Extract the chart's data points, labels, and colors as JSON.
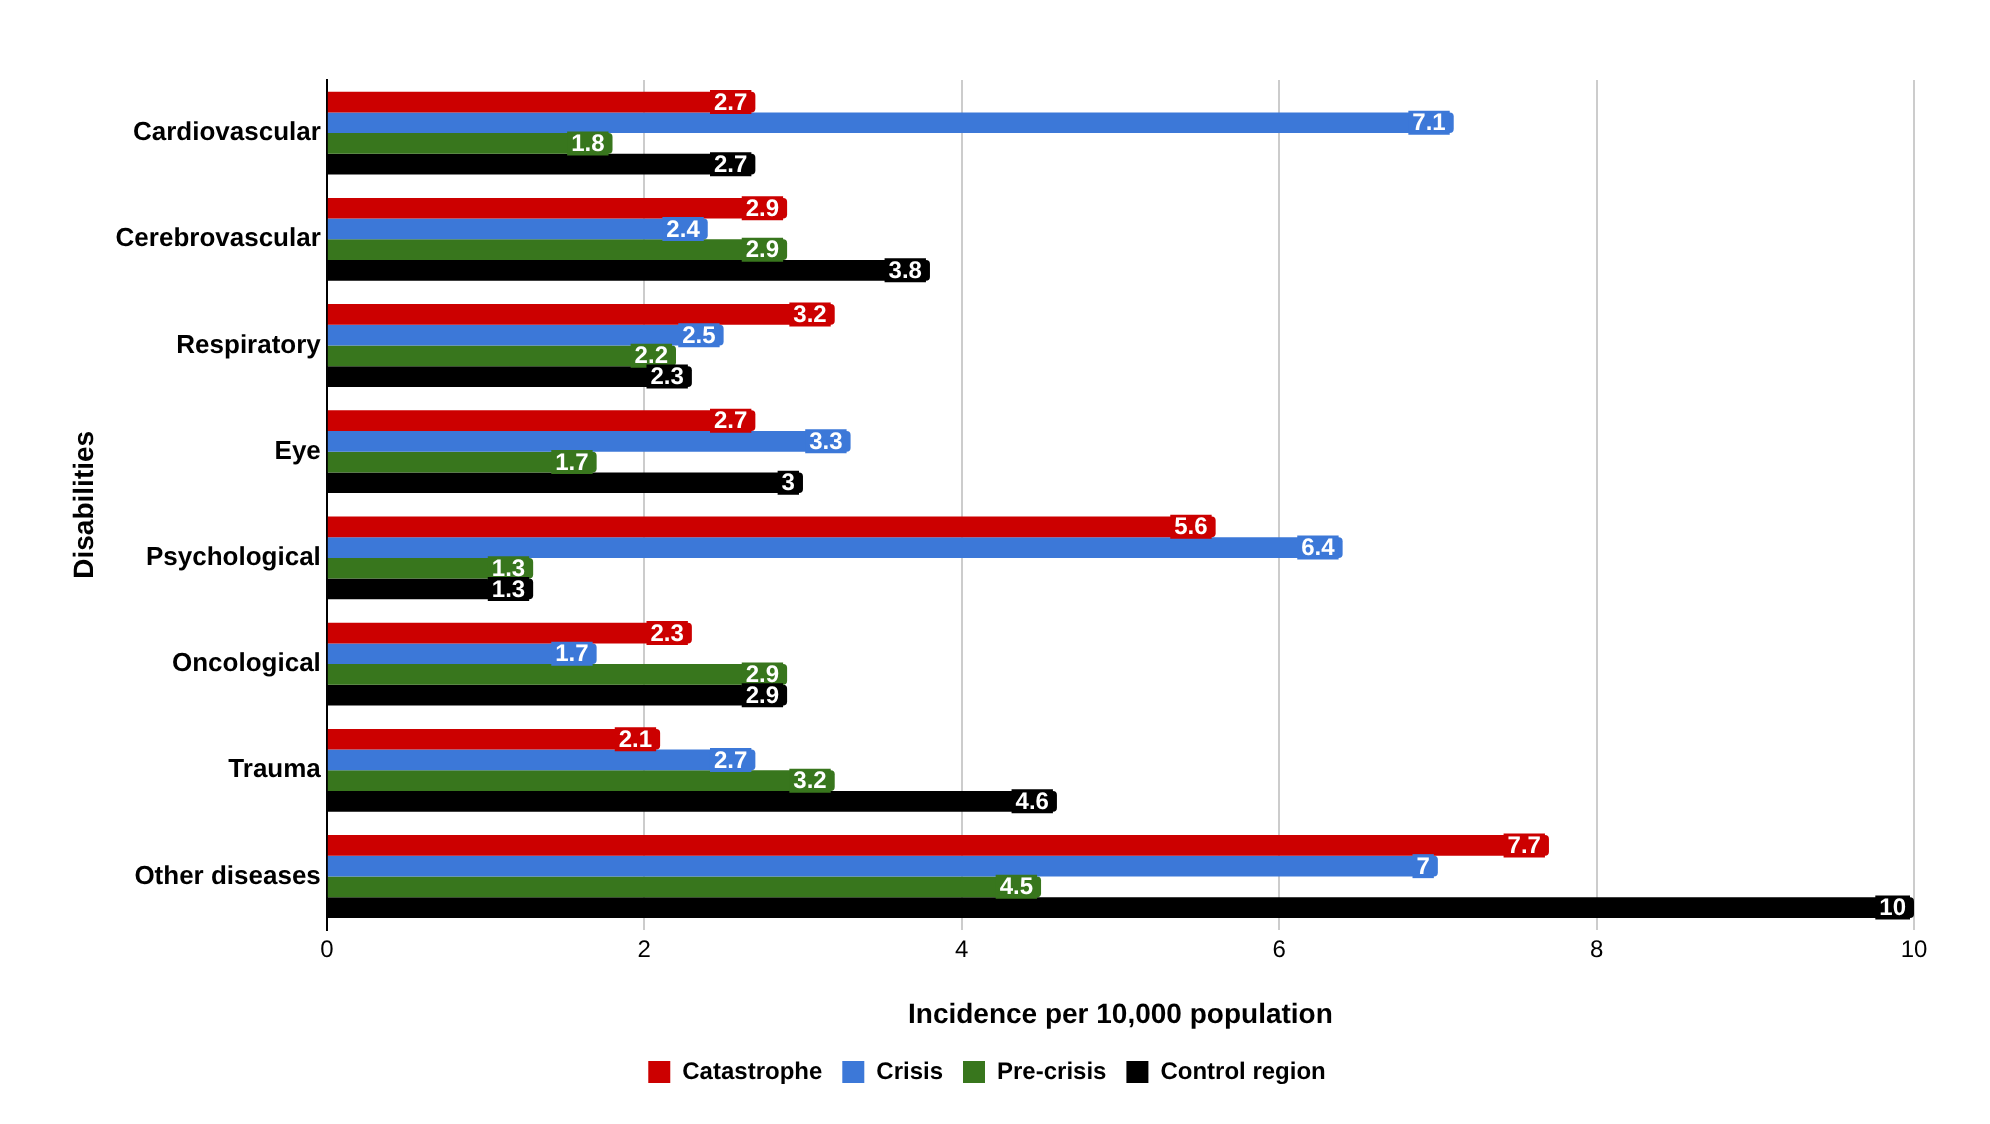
{
  "chart_data": {
    "type": "bar",
    "orientation": "horizontal",
    "xlabel": "Incidence per 10,000 population",
    "ylabel": "Disabilities",
    "categories": [
      "Cardiovascular",
      "Cerebrovascular",
      "Respiratory",
      "Eye",
      "Psychological",
      "Oncological",
      "Trauma",
      "Other diseases"
    ],
    "series": [
      {
        "name": "Catastrophe",
        "color": "#cc0000",
        "values": [
          2.7,
          2.9,
          3.2,
          2.7,
          5.6,
          2.3,
          2.1,
          7.7
        ]
      },
      {
        "name": "Crisis",
        "color": "#3c78d8",
        "values": [
          7.1,
          2.4,
          2.5,
          3.3,
          6.4,
          1.7,
          2.7,
          7
        ]
      },
      {
        "name": "Pre-crisis",
        "color": "#38761d",
        "values": [
          1.8,
          2.9,
          2.2,
          1.7,
          1.3,
          2.9,
          3.2,
          4.5
        ]
      },
      {
        "name": "Control region",
        "color": "#000000",
        "values": [
          2.7,
          3.8,
          2.3,
          3,
          1.3,
          2.9,
          4.6,
          10
        ]
      }
    ],
    "xlim": [
      0,
      10
    ],
    "xticks": [
      0,
      2,
      4,
      6,
      8,
      10
    ],
    "grid": "x",
    "legend": "bottom",
    "data_labels": true
  }
}
